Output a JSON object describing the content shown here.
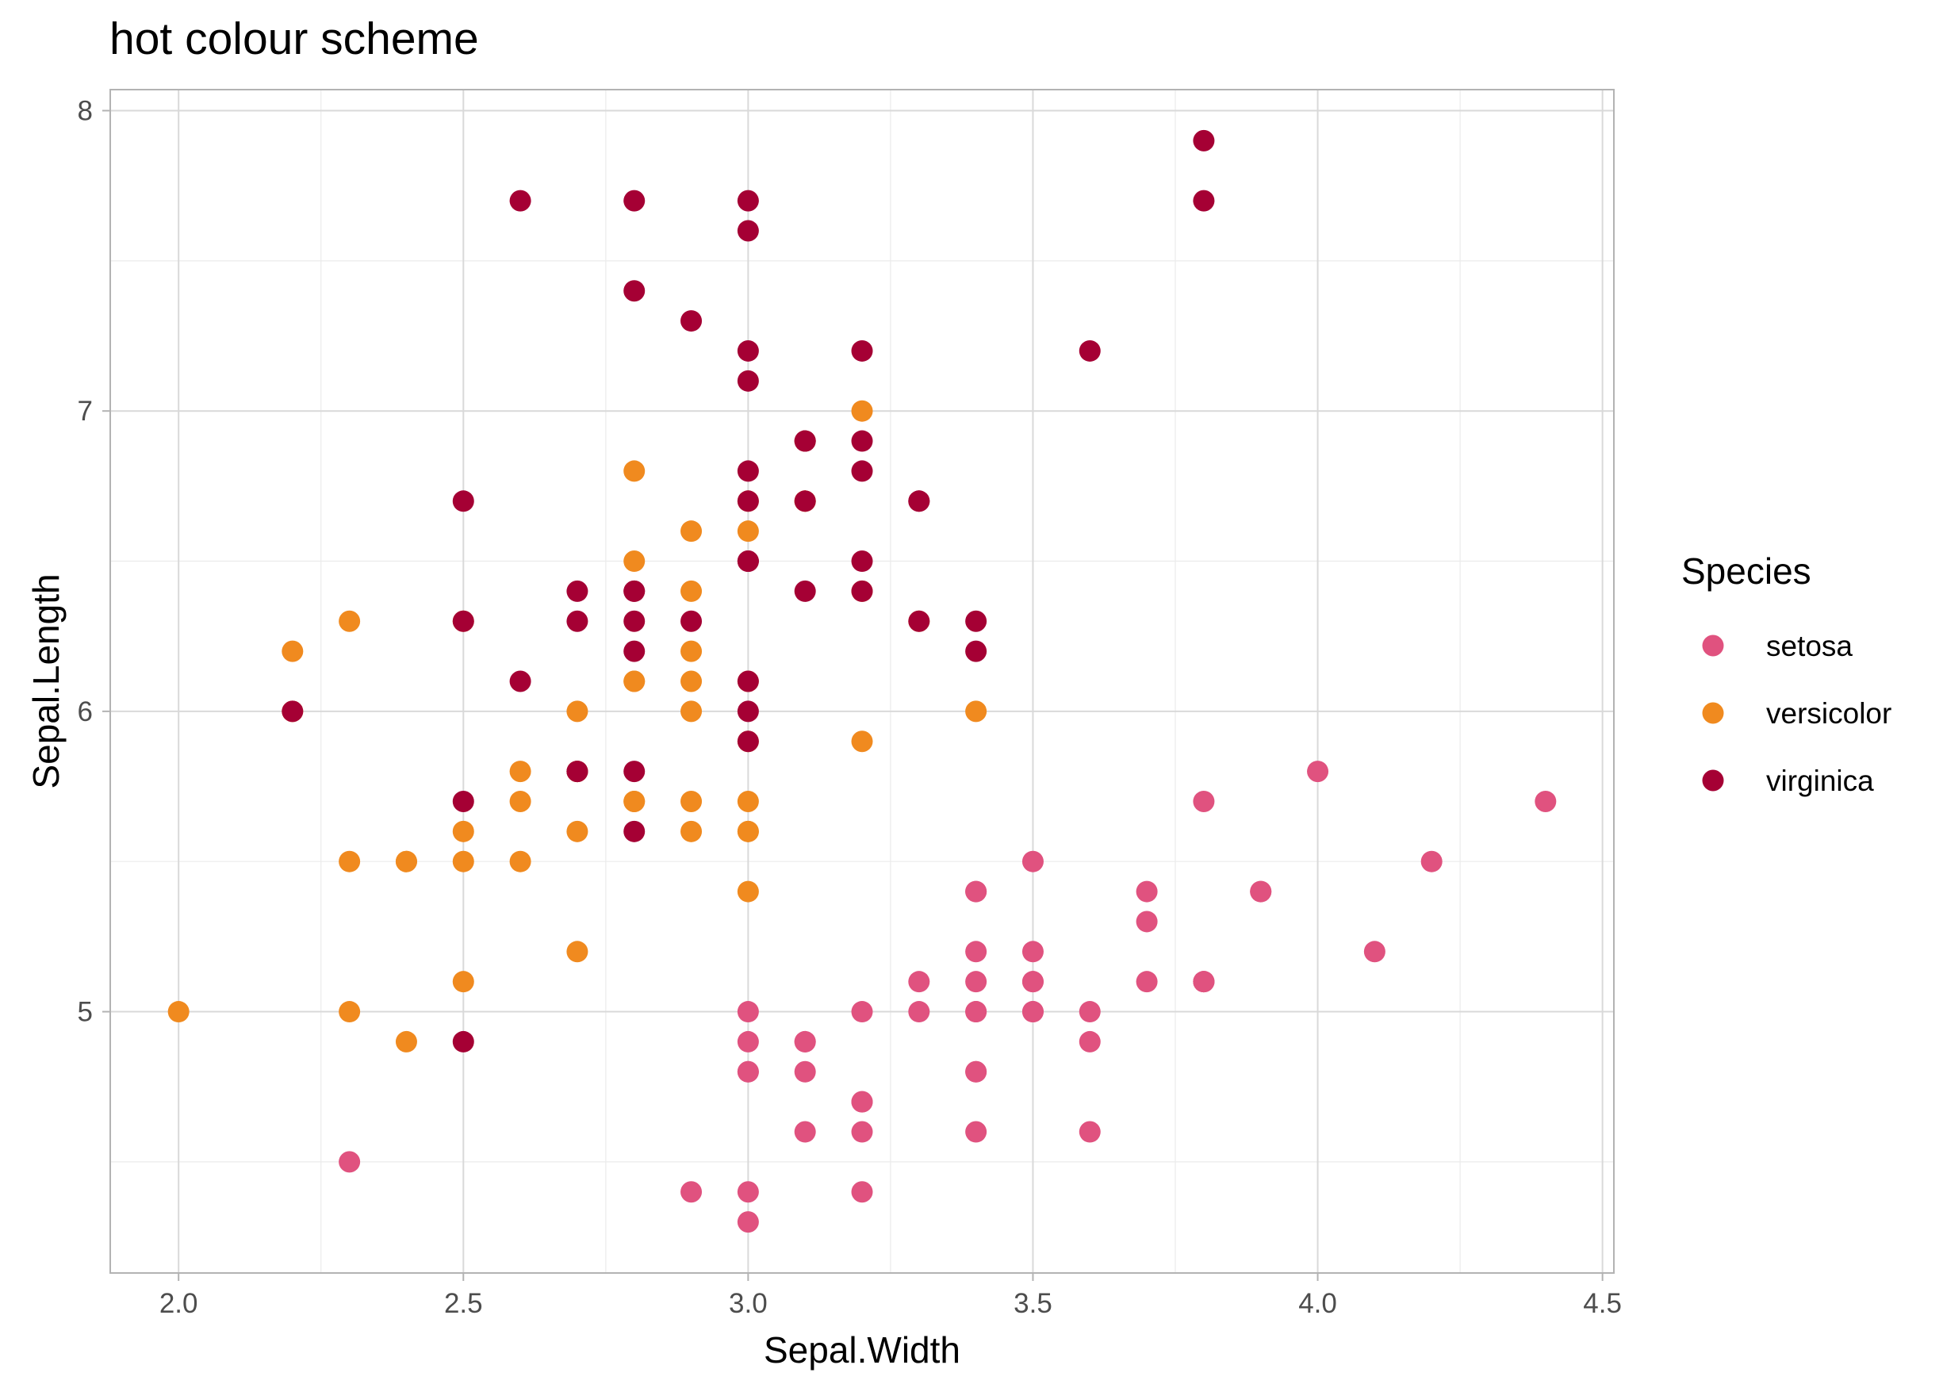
{
  "chart_data": {
    "type": "scatter",
    "title": "hot colour scheme",
    "xlabel": "Sepal.Width",
    "ylabel": "Sepal.Length",
    "xlim": [
      1.88,
      4.52
    ],
    "ylim": [
      4.13,
      8.07
    ],
    "x_ticks": [
      2.0,
      2.5,
      3.0,
      3.5,
      4.0,
      4.5
    ],
    "x_tick_labels": [
      "2.0",
      "2.5",
      "3.0",
      "3.5",
      "4.0",
      "4.5"
    ],
    "y_ticks": [
      5,
      6,
      7,
      8
    ],
    "y_tick_labels": [
      "5",
      "6",
      "7",
      "8"
    ],
    "grid": true,
    "legend": {
      "title": "Species",
      "position": "right"
    },
    "series": [
      {
        "name": "setosa",
        "color": "#E0527F",
        "points": [
          [
            3.5,
            5.1
          ],
          [
            3.0,
            4.9
          ],
          [
            3.2,
            4.7
          ],
          [
            3.1,
            4.6
          ],
          [
            3.6,
            5.0
          ],
          [
            3.9,
            5.4
          ],
          [
            3.4,
            4.6
          ],
          [
            3.4,
            5.0
          ],
          [
            2.9,
            4.4
          ],
          [
            3.1,
            4.9
          ],
          [
            3.7,
            5.4
          ],
          [
            3.4,
            4.8
          ],
          [
            3.0,
            4.8
          ],
          [
            3.0,
            4.3
          ],
          [
            4.0,
            5.8
          ],
          [
            4.4,
            5.7
          ],
          [
            3.9,
            5.4
          ],
          [
            3.5,
            5.1
          ],
          [
            3.8,
            5.7
          ],
          [
            3.8,
            5.1
          ],
          [
            3.4,
            5.4
          ],
          [
            3.7,
            5.1
          ],
          [
            3.6,
            4.6
          ],
          [
            3.3,
            5.1
          ],
          [
            3.4,
            4.8
          ],
          [
            3.0,
            5.0
          ],
          [
            3.4,
            5.0
          ],
          [
            3.5,
            5.2
          ],
          [
            3.4,
            5.2
          ],
          [
            3.2,
            4.7
          ],
          [
            3.1,
            4.8
          ],
          [
            3.4,
            5.4
          ],
          [
            4.1,
            5.2
          ],
          [
            4.2,
            5.5
          ],
          [
            3.1,
            4.9
          ],
          [
            3.2,
            5.0
          ],
          [
            3.5,
            5.5
          ],
          [
            3.6,
            4.9
          ],
          [
            3.0,
            4.4
          ],
          [
            3.4,
            5.1
          ],
          [
            3.5,
            5.0
          ],
          [
            2.3,
            4.5
          ],
          [
            3.2,
            4.4
          ],
          [
            3.5,
            5.0
          ],
          [
            3.8,
            5.1
          ],
          [
            3.0,
            4.8
          ],
          [
            3.8,
            5.1
          ],
          [
            3.2,
            4.6
          ],
          [
            3.7,
            5.3
          ],
          [
            3.3,
            5.0
          ]
        ]
      },
      {
        "name": "versicolor",
        "color": "#F08A1F",
        "points": [
          [
            3.2,
            7.0
          ],
          [
            3.2,
            6.4
          ],
          [
            3.1,
            6.9
          ],
          [
            2.3,
            5.5
          ],
          [
            2.8,
            6.5
          ],
          [
            2.8,
            5.7
          ],
          [
            3.3,
            6.3
          ],
          [
            2.4,
            4.9
          ],
          [
            2.9,
            6.6
          ],
          [
            2.7,
            5.2
          ],
          [
            2.0,
            5.0
          ],
          [
            3.0,
            5.9
          ],
          [
            2.2,
            6.0
          ],
          [
            2.9,
            6.1
          ],
          [
            2.9,
            5.6
          ],
          [
            3.1,
            6.7
          ],
          [
            3.0,
            5.6
          ],
          [
            2.7,
            5.8
          ],
          [
            2.2,
            6.2
          ],
          [
            2.5,
            5.6
          ],
          [
            3.2,
            5.9
          ],
          [
            2.8,
            6.1
          ],
          [
            2.5,
            6.3
          ],
          [
            2.8,
            6.1
          ],
          [
            2.9,
            6.4
          ],
          [
            3.0,
            6.6
          ],
          [
            2.8,
            6.8
          ],
          [
            3.0,
            6.7
          ],
          [
            2.9,
            6.0
          ],
          [
            2.6,
            5.7
          ],
          [
            2.4,
            5.5
          ],
          [
            2.4,
            5.5
          ],
          [
            2.7,
            5.8
          ],
          [
            2.7,
            6.0
          ],
          [
            3.0,
            5.4
          ],
          [
            3.4,
            6.0
          ],
          [
            3.1,
            6.7
          ],
          [
            2.3,
            6.3
          ],
          [
            3.0,
            5.6
          ],
          [
            2.5,
            5.5
          ],
          [
            2.6,
            5.5
          ],
          [
            3.0,
            6.1
          ],
          [
            2.6,
            5.8
          ],
          [
            2.3,
            5.0
          ],
          [
            2.7,
            5.6
          ],
          [
            3.0,
            5.7
          ],
          [
            2.9,
            5.7
          ],
          [
            2.9,
            6.2
          ],
          [
            2.5,
            5.1
          ],
          [
            2.8,
            5.7
          ]
        ]
      },
      {
        "name": "virginica",
        "color": "#A50034",
        "points": [
          [
            3.3,
            6.3
          ],
          [
            2.7,
            5.8
          ],
          [
            3.0,
            7.1
          ],
          [
            2.9,
            6.3
          ],
          [
            3.0,
            6.5
          ],
          [
            3.0,
            7.6
          ],
          [
            2.5,
            4.9
          ],
          [
            2.9,
            7.3
          ],
          [
            2.5,
            6.7
          ],
          [
            3.6,
            7.2
          ],
          [
            3.2,
            6.5
          ],
          [
            2.7,
            6.4
          ],
          [
            3.0,
            6.8
          ],
          [
            2.5,
            5.7
          ],
          [
            2.8,
            5.8
          ],
          [
            3.2,
            6.4
          ],
          [
            3.0,
            6.5
          ],
          [
            3.8,
            7.7
          ],
          [
            2.6,
            7.7
          ],
          [
            2.2,
            6.0
          ],
          [
            3.2,
            6.9
          ],
          [
            2.8,
            5.6
          ],
          [
            2.8,
            7.7
          ],
          [
            2.7,
            6.3
          ],
          [
            3.3,
            6.7
          ],
          [
            3.2,
            7.2
          ],
          [
            2.8,
            6.2
          ],
          [
            3.0,
            6.1
          ],
          [
            2.8,
            6.4
          ],
          [
            3.0,
            7.2
          ],
          [
            2.8,
            7.4
          ],
          [
            3.8,
            7.9
          ],
          [
            2.8,
            6.4
          ],
          [
            2.8,
            6.3
          ],
          [
            2.6,
            6.1
          ],
          [
            3.0,
            7.7
          ],
          [
            3.4,
            6.3
          ],
          [
            3.1,
            6.4
          ],
          [
            3.0,
            6.0
          ],
          [
            3.1,
            6.9
          ],
          [
            3.1,
            6.7
          ],
          [
            3.1,
            6.9
          ],
          [
            2.7,
            5.8
          ],
          [
            3.2,
            6.8
          ],
          [
            3.3,
            6.7
          ],
          [
            3.0,
            6.7
          ],
          [
            2.5,
            6.3
          ],
          [
            3.0,
            6.5
          ],
          [
            3.4,
            6.2
          ],
          [
            3.0,
            5.9
          ]
        ]
      }
    ]
  }
}
